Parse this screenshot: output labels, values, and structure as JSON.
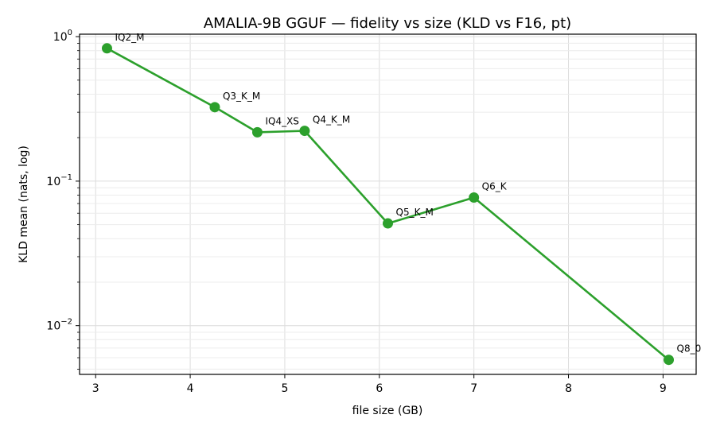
{
  "chart_data": {
    "type": "line",
    "title": "AMALIA-9B GGUF — fidelity vs size (KLD vs F16, pt)",
    "xlabel": "file size (GB)",
    "ylabel": "KLD mean (nats, log)",
    "xlim": [
      2.83,
      9.35
    ],
    "ylim": [
      0.0046,
      1.04
    ],
    "yscale": "log",
    "grid": true,
    "x_ticks": [
      3,
      4,
      5,
      6,
      7,
      8,
      9
    ],
    "y_ticks": [
      0.01,
      0.1,
      1
    ],
    "y_tick_labels": [
      {
        "base": "10",
        "exp": "−2"
      },
      {
        "base": "10",
        "exp": "−1"
      },
      {
        "base": "10",
        "exp": "0"
      }
    ],
    "color": "#2ca02c",
    "series": [
      {
        "points": [
          {
            "label": "IQ2_M",
            "x": 3.12,
            "y": 0.83
          },
          {
            "label": "Q3_K_M",
            "x": 4.26,
            "y": 0.325
          },
          {
            "label": "IQ4_XS",
            "x": 4.71,
            "y": 0.218
          },
          {
            "label": "Q4_K_M",
            "x": 5.21,
            "y": 0.223
          },
          {
            "label": "Q5_K_M",
            "x": 6.09,
            "y": 0.051
          },
          {
            "label": "Q6_K",
            "x": 7.0,
            "y": 0.077
          },
          {
            "label": "Q8_0",
            "x": 9.06,
            "y": 0.0058
          }
        ]
      }
    ]
  }
}
